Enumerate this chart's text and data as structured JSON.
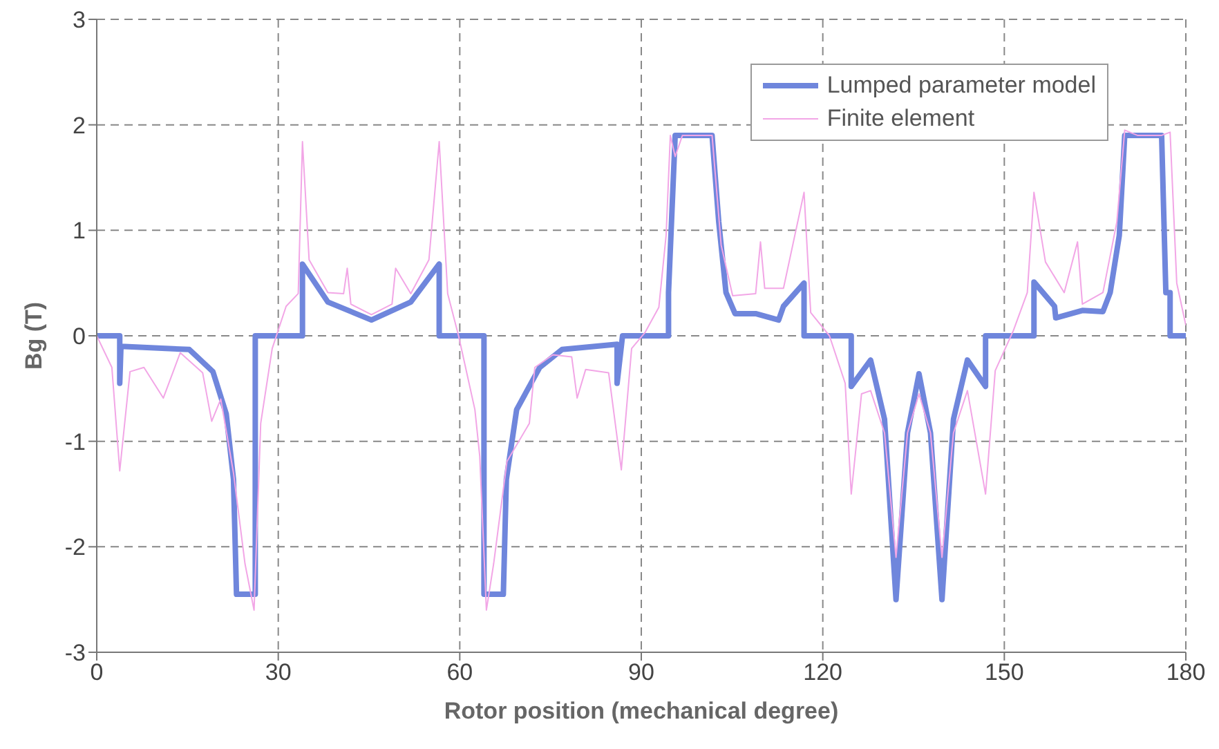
{
  "chart_data": {
    "type": "line",
    "xlabel": "Rotor position (mechanical degree)",
    "ylabel": "Bg (T)",
    "xlim": [
      0,
      180
    ],
    "xticks": [
      0,
      30,
      60,
      90,
      120,
      150,
      180
    ],
    "ylim": [
      -3,
      3
    ],
    "yticks": [
      -3,
      -2,
      -1,
      0,
      1,
      2,
      3
    ],
    "grid": true,
    "legend": "top right",
    "marker": "none",
    "line_style": "solid",
    "series": [
      {
        "name": "Lumped parameter model",
        "color": "#6f86dc",
        "x": [
          0,
          3.8,
          3.8,
          4.0,
          15.3,
          19.2,
          21.4,
          22.6,
          23.1,
          26.2,
          26.2,
          34.0,
          34.0,
          38.2,
          45.4,
          51.9,
          56.6,
          56.6,
          64.0,
          64.0,
          67.2,
          67.7,
          69.4,
          73.2,
          76.9,
          86.0,
          86.0,
          86.9,
          94.5,
          94.5,
          95.6,
          101.7,
          102.8,
          104.0,
          105.5,
          108.9,
          112.7,
          113.5,
          116.9,
          116.9,
          124.7,
          124.7,
          127.9,
          130.2,
          132.1,
          134.0,
          135.9,
          137.8,
          139.7,
          141.6,
          143.9,
          146.9,
          146.9,
          154.9,
          154.9,
          158.3,
          158.5,
          162.9,
          166.3,
          167.5,
          169.0,
          169.9,
          176.0,
          176.7,
          177.4,
          177.4,
          180
        ],
        "values": [
          0,
          0,
          -0.45,
          -0.1,
          -0.13,
          -0.34,
          -0.74,
          -1.36,
          -2.45,
          -2.45,
          0,
          0,
          0.68,
          0.32,
          0.15,
          0.32,
          0.68,
          0,
          0,
          -2.45,
          -2.45,
          -1.36,
          -0.7,
          -0.3,
          -0.13,
          -0.08,
          -0.45,
          0,
          0,
          0.41,
          1.9,
          1.9,
          1.08,
          0.41,
          0.21,
          0.21,
          0.15,
          0.28,
          0.5,
          0,
          0,
          -0.48,
          -0.23,
          -0.79,
          -2.5,
          -0.92,
          -0.36,
          -0.92,
          -2.5,
          -0.79,
          -0.23,
          -0.48,
          0,
          0,
          0.51,
          0.28,
          0.17,
          0.24,
          0.23,
          0.41,
          0.95,
          1.9,
          1.9,
          0.41,
          0.41,
          0,
          0
        ]
      },
      {
        "name": "Finite element",
        "color": "#f2a6e6",
        "x": [
          0,
          2.5,
          3.8,
          5.5,
          7.8,
          11.0,
          13.8,
          17.5,
          19.0,
          20.5,
          22.6,
          24.5,
          26.0,
          27.1,
          29.0,
          31.3,
          33.3,
          34.0,
          35.1,
          38.2,
          40.8,
          41.4,
          42.0,
          45.4,
          48.8,
          49.4,
          51.9,
          54.9,
          56.6,
          58.0,
          59.8,
          62.5,
          63.3,
          64.4,
          65.6,
          67.8,
          71.5,
          72.4,
          75.4,
          78.5,
          79.4,
          80.8,
          84.6,
          86.7,
          88.4,
          90.6,
          92.9,
          94.1,
          94.8,
          95.6,
          96.8,
          101.7,
          103.2,
          105.1,
          108.9,
          109.7,
          110.4,
          113.5,
          116.9,
          118.0,
          121.1,
          123.7,
          124.7,
          126.4,
          127.9,
          130.2,
          132.1,
          134.0,
          135.9,
          137.8,
          139.7,
          141.6,
          143.9,
          146.9,
          148.5,
          151.5,
          153.8,
          154.9,
          156.8,
          159.9,
          162.1,
          162.9,
          166.3,
          168.6,
          169.9,
          172.0,
          176.0,
          177.4,
          178.5,
          180
        ],
        "values": [
          0,
          -0.3,
          -1.28,
          -0.34,
          -0.3,
          -0.59,
          -0.16,
          -0.35,
          -0.81,
          -0.6,
          -1.3,
          -2.16,
          -2.6,
          -0.83,
          -0.12,
          0.28,
          0.4,
          1.84,
          0.72,
          0.41,
          0.4,
          0.64,
          0.3,
          0.2,
          0.3,
          0.64,
          0.4,
          0.72,
          1.84,
          0.4,
          0,
          -0.7,
          -1.14,
          -2.6,
          -2.16,
          -1.19,
          -0.83,
          -0.3,
          -0.18,
          -0.2,
          -0.59,
          -0.32,
          -0.35,
          -1.27,
          -0.12,
          0.03,
          0.27,
          0.95,
          1.9,
          1.7,
          1.9,
          1.9,
          0.86,
          0.38,
          0.4,
          0.89,
          0.45,
          0.45,
          1.36,
          0.22,
          0,
          -0.45,
          -1.5,
          -0.55,
          -0.52,
          -0.92,
          -2.1,
          -0.92,
          -0.55,
          -0.92,
          -2.1,
          -0.92,
          -0.52,
          -1.5,
          -0.33,
          0.05,
          0.41,
          1.36,
          0.7,
          0.41,
          0.89,
          0.3,
          0.41,
          1.08,
          1.95,
          1.9,
          1.9,
          1.93,
          0.5,
          0.1
        ]
      }
    ]
  }
}
